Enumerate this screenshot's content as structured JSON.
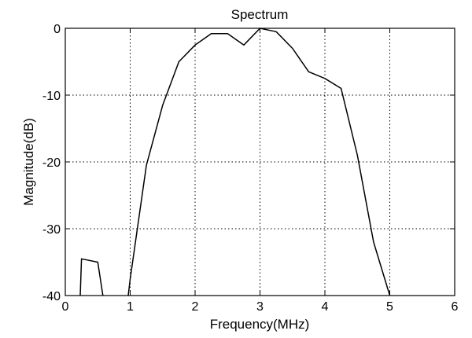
{
  "chart_data": {
    "type": "line",
    "title": "Spectrum",
    "xlabel": "Frequency(MHz)",
    "ylabel": "Magnitude(dB)",
    "xlim": [
      0,
      6
    ],
    "ylim": [
      -40,
      0
    ],
    "xticks": [
      0,
      1,
      2,
      3,
      4,
      5,
      6
    ],
    "yticks": [
      0,
      -10,
      -20,
      -30,
      -40
    ],
    "grid": true,
    "legend": "none",
    "series": [
      {
        "segments": [
          [
            [
              0.23,
              -40
            ],
            [
              0.25,
              -34.5
            ],
            [
              0.5,
              -35
            ],
            [
              0.58,
              -40
            ]
          ],
          [
            [
              0.97,
              -40
            ],
            [
              1.0,
              -37.5
            ],
            [
              1.25,
              -20.5
            ],
            [
              1.5,
              -11.5
            ],
            [
              1.75,
              -5
            ],
            [
              2.0,
              -2.5
            ],
            [
              2.25,
              -0.8
            ],
            [
              2.5,
              -0.8
            ],
            [
              2.75,
              -2.5
            ],
            [
              3.0,
              0
            ],
            [
              3.25,
              -0.5
            ],
            [
              3.5,
              -3
            ],
            [
              3.75,
              -6.5
            ],
            [
              4.0,
              -7.5
            ],
            [
              4.25,
              -9
            ],
            [
              4.5,
              -19
            ],
            [
              4.75,
              -32
            ],
            [
              5.0,
              -40
            ]
          ]
        ]
      }
    ]
  }
}
